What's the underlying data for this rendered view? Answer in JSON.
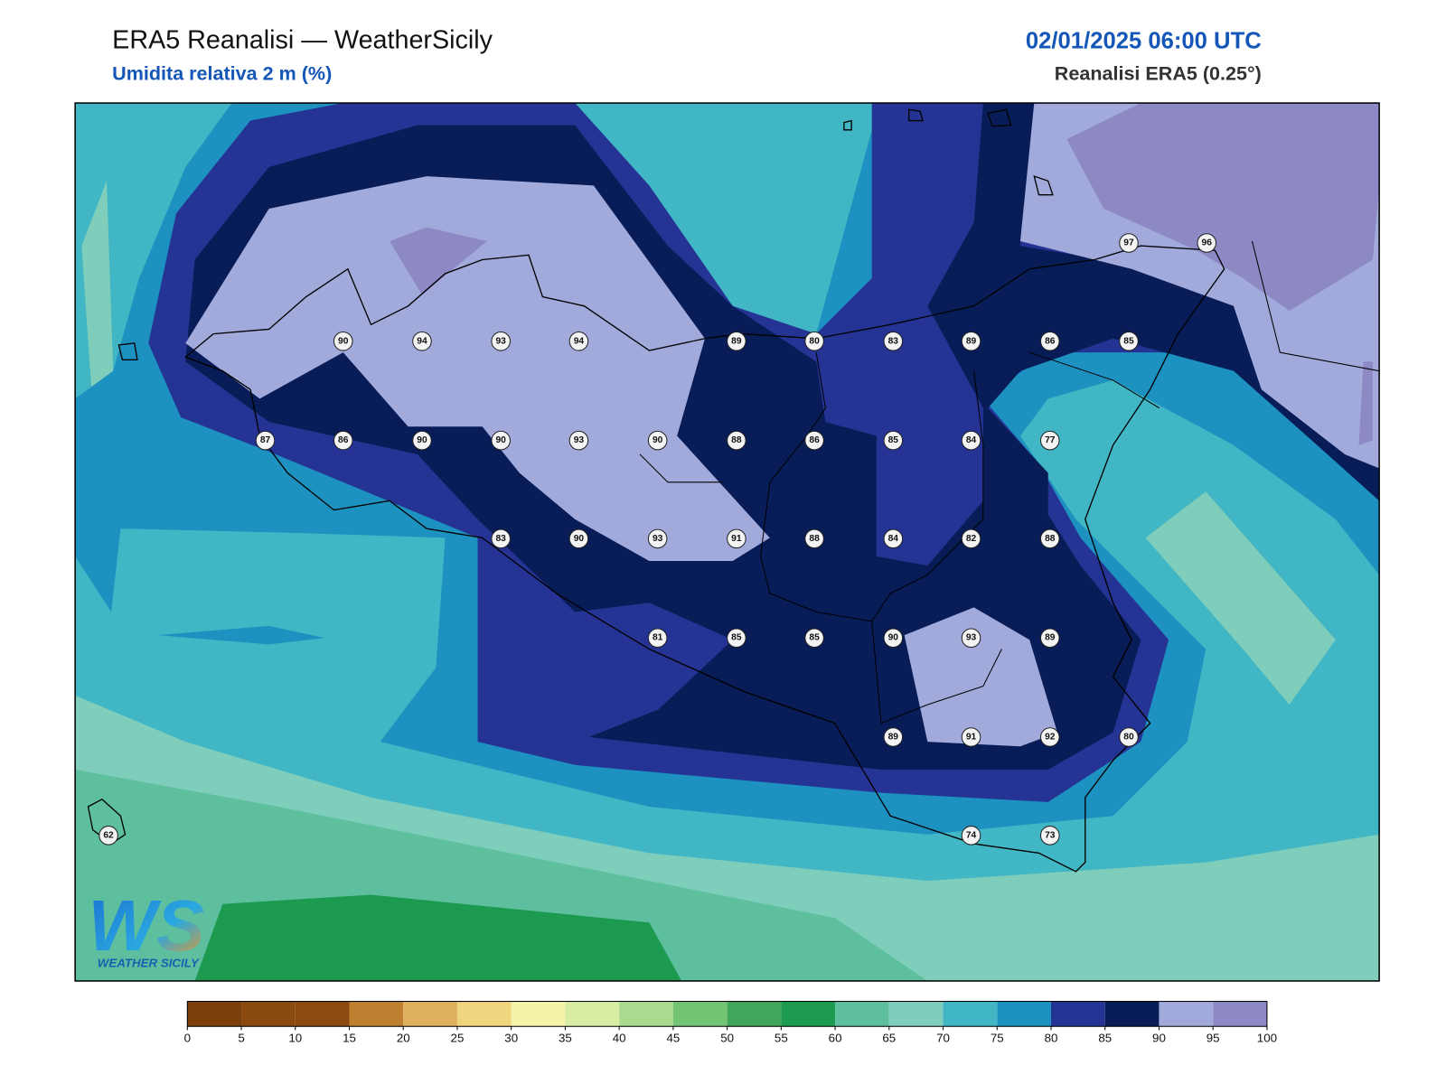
{
  "header": {
    "title": "ERA5 Reanalisi — WeatherSicily",
    "subtitle": "Umidita relativa 2 m (%)",
    "datetime": "02/01/2025 06:00 UTC",
    "source": "Reanalisi ERA5 (0.25°)"
  },
  "stations": [
    90,
    94,
    93,
    94,
    89,
    80,
    83,
    89,
    86,
    85,
    97,
    96,
    87,
    86,
    90,
    90,
    93,
    90,
    88,
    86,
    85,
    84,
    77,
    83,
    90,
    93,
    91,
    88,
    84,
    82,
    88,
    81,
    85,
    85,
    90,
    93,
    89,
    89,
    91,
    92,
    80,
    62,
    74,
    73
  ],
  "colorbar": {
    "ticks": [
      0,
      5,
      10,
      15,
      20,
      25,
      30,
      35,
      40,
      45,
      50,
      55,
      60,
      65,
      70,
      75,
      80,
      85,
      90,
      95,
      100
    ],
    "colors": [
      "#7a3f0a",
      "#8a4a0f",
      "#8c4a10",
      "#bf7f30",
      "#dfb05d",
      "#f0d47e",
      "#f5f3a8",
      "#d8eda4",
      "#a8db8e",
      "#74c476",
      "#3fa65a",
      "#1b9a50",
      "#5ebf9f",
      "#7fcdbb",
      "#41b6c4",
      "#1d91c0",
      "#253494",
      "#081d58",
      "#a2aadb",
      "#8c89c5"
    ]
  },
  "logo": {
    "mark": "WS",
    "text": "WEATHER SICILY"
  }
}
